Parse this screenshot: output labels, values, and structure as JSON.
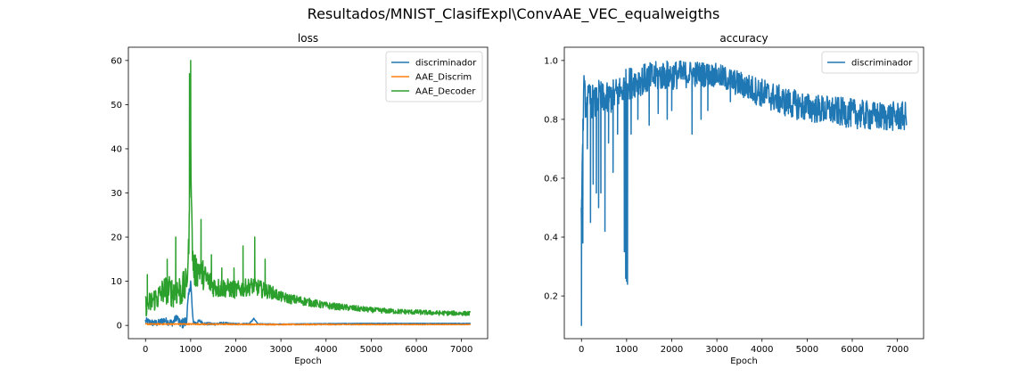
{
  "figure": {
    "suptitle": "Resultados/MNIST_ClasifExpl\\ConvAAE_VEC_equalweigths"
  },
  "colors": {
    "blue": "#1f77b4",
    "orange": "#ff7f0e",
    "green": "#2ca02c",
    "axis": "#000000",
    "legend_border": "#cccccc"
  },
  "chart_data": [
    {
      "type": "line",
      "title": "loss",
      "xlabel": "Epoch",
      "ylabel": "",
      "xlim": [
        -380,
        7580
      ],
      "ylim": [
        -3,
        63
      ],
      "xticks": [
        0,
        1000,
        2000,
        3000,
        4000,
        5000,
        6000,
        7000
      ],
      "yticks": [
        0,
        10,
        20,
        30,
        40,
        50,
        60
      ],
      "grid": false,
      "legend": "upper right",
      "series": [
        {
          "name": "discriminador",
          "color": "#1f77b4",
          "anchors": [
            [
              0,
              1.0
            ],
            [
              100,
              0.7
            ],
            [
              200,
              0.5
            ],
            [
              300,
              0.6
            ],
            [
              400,
              1.2
            ],
            [
              500,
              0.8
            ],
            [
              600,
              0.6
            ],
            [
              700,
              2.0
            ],
            [
              750,
              0.5
            ],
            [
              800,
              0.4
            ],
            [
              900,
              0.8
            ],
            [
              950,
              6.0
            ],
            [
              1000,
              10.0
            ],
            [
              1050,
              1.0
            ],
            [
              1100,
              0.5
            ],
            [
              1200,
              1.0
            ],
            [
              1300,
              0.4
            ],
            [
              1500,
              0.3
            ],
            [
              1700,
              0.5
            ],
            [
              2000,
              0.3
            ],
            [
              2300,
              0.4
            ],
            [
              2400,
              1.5
            ],
            [
              2500,
              0.3
            ],
            [
              3000,
              0.3
            ],
            [
              4000,
              0.4
            ],
            [
              5000,
              0.45
            ],
            [
              6000,
              0.45
            ],
            [
              7200,
              0.45
            ]
          ],
          "noise": [
            [
              0,
              0.8
            ],
            [
              700,
              0.8
            ],
            [
              900,
              1.5
            ],
            [
              1100,
              0.4
            ],
            [
              2000,
              0.2
            ],
            [
              3000,
              0.05
            ],
            [
              7200,
              0.05
            ]
          ]
        },
        {
          "name": "AAE_Discrim",
          "color": "#ff7f0e",
          "anchors": [
            [
              0,
              0.3
            ],
            [
              1000,
              0.3
            ],
            [
              3000,
              0.2
            ],
            [
              7200,
              0.2
            ]
          ],
          "noise": [
            [
              0,
              0.15
            ],
            [
              7200,
              0.05
            ]
          ]
        },
        {
          "name": "AAE_Decoder",
          "color": "#2ca02c",
          "anchors": [
            [
              0,
              4.5
            ],
            [
              100,
              5.0
            ],
            [
              200,
              6.0
            ],
            [
              300,
              6.5
            ],
            [
              400,
              8.0
            ],
            [
              500,
              8.0
            ],
            [
              600,
              7.5
            ],
            [
              700,
              8.0
            ],
            [
              800,
              8.0
            ],
            [
              900,
              9.0
            ],
            [
              950,
              15.0
            ],
            [
              980,
              30.0
            ],
            [
              1000,
              45.0
            ],
            [
              1020,
              25.0
            ],
            [
              1050,
              14.0
            ],
            [
              1100,
              12.0
            ],
            [
              1200,
              13.0
            ],
            [
              1300,
              11.0
            ],
            [
              1400,
              10.0
            ],
            [
              1500,
              9.0
            ],
            [
              1600,
              8.5
            ],
            [
              1800,
              8.5
            ],
            [
              2000,
              8.0
            ],
            [
              2200,
              8.5
            ],
            [
              2400,
              9.0
            ],
            [
              2600,
              8.0
            ],
            [
              2800,
              7.5
            ],
            [
              3000,
              6.5
            ],
            [
              3200,
              6.0
            ],
            [
              3500,
              5.5
            ],
            [
              4000,
              4.5
            ],
            [
              4500,
              4.0
            ],
            [
              5000,
              3.5
            ],
            [
              5500,
              3.2
            ],
            [
              6000,
              3.0
            ],
            [
              6500,
              2.8
            ],
            [
              7200,
              2.7
            ]
          ],
          "noise": [
            [
              0,
              2.5
            ],
            [
              900,
              4.0
            ],
            [
              1100,
              4.0
            ],
            [
              1500,
              2.5
            ],
            [
              2000,
              2.0
            ],
            [
              2500,
              2.0
            ],
            [
              3000,
              1.2
            ],
            [
              4000,
              0.8
            ],
            [
              5000,
              0.6
            ],
            [
              7200,
              0.5
            ]
          ],
          "spikes": [
            [
              40,
              11.5
            ],
            [
              480,
              15.0
            ],
            [
              670,
              20.0
            ],
            [
              975,
              57.0
            ],
            [
              1000,
              60.0
            ],
            [
              1230,
              24.0
            ],
            [
              1460,
              16.0
            ],
            [
              1690,
              13.0
            ],
            [
              1960,
              13.0
            ],
            [
              2160,
              18.0
            ],
            [
              2420,
              20.0
            ],
            [
              2650,
              15.0
            ]
          ]
        }
      ]
    },
    {
      "type": "line",
      "title": "accuracy",
      "xlabel": "Epoch",
      "ylabel": "",
      "xlim": [
        -380,
        7580
      ],
      "ylim": [
        0.055,
        1.045
      ],
      "xticks": [
        0,
        1000,
        2000,
        3000,
        4000,
        5000,
        6000,
        7000
      ],
      "yticks": [
        0.2,
        0.4,
        0.6,
        0.8,
        1.0
      ],
      "grid": false,
      "legend": "upper right",
      "series": [
        {
          "name": "discriminador",
          "color": "#1f77b4",
          "anchors": [
            [
              0,
              0.5
            ],
            [
              50,
              0.9
            ],
            [
              100,
              0.85
            ],
            [
              200,
              0.87
            ],
            [
              300,
              0.85
            ],
            [
              400,
              0.88
            ],
            [
              500,
              0.86
            ],
            [
              700,
              0.88
            ],
            [
              900,
              0.9
            ],
            [
              1000,
              0.92
            ],
            [
              1200,
              0.93
            ],
            [
              1500,
              0.94
            ],
            [
              1800,
              0.95
            ],
            [
              2000,
              0.95
            ],
            [
              2500,
              0.955
            ],
            [
              3000,
              0.95
            ],
            [
              3500,
              0.92
            ],
            [
              4000,
              0.89
            ],
            [
              4500,
              0.86
            ],
            [
              5000,
              0.84
            ],
            [
              5500,
              0.83
            ],
            [
              6000,
              0.82
            ],
            [
              6500,
              0.81
            ],
            [
              7200,
              0.81
            ]
          ],
          "noise": [
            [
              0,
              0.06
            ],
            [
              2000,
              0.05
            ],
            [
              3000,
              0.04
            ],
            [
              4000,
              0.05
            ],
            [
              5000,
              0.05
            ],
            [
              7200,
              0.05
            ]
          ],
          "spikes": [
            [
              0,
              0.1
            ],
            [
              30,
              0.38
            ],
            [
              130,
              0.7
            ],
            [
              200,
              0.45
            ],
            [
              260,
              0.58
            ],
            [
              330,
              0.55
            ],
            [
              380,
              0.5
            ],
            [
              430,
              0.55
            ],
            [
              520,
              0.42
            ],
            [
              600,
              0.72
            ],
            [
              700,
              0.62
            ],
            [
              800,
              0.75
            ],
            [
              950,
              0.35
            ],
            [
              980,
              0.26
            ],
            [
              1000,
              0.25
            ],
            [
              1020,
              0.24
            ],
            [
              1100,
              0.75
            ],
            [
              1250,
              0.8
            ],
            [
              1500,
              0.78
            ],
            [
              1700,
              0.82
            ],
            [
              1900,
              0.8
            ],
            [
              2000,
              0.83
            ],
            [
              2450,
              0.75
            ],
            [
              2650,
              0.8
            ],
            [
              2800,
              0.83
            ],
            [
              3300,
              0.86
            ]
          ]
        }
      ]
    }
  ]
}
